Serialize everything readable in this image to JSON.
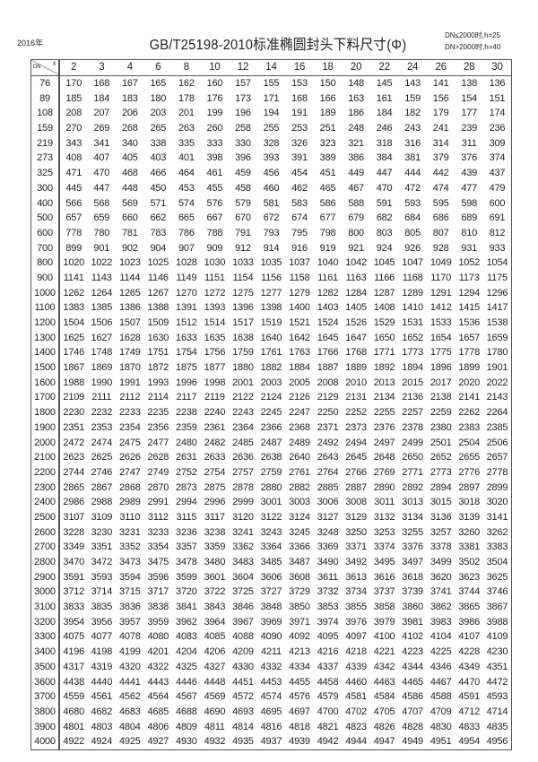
{
  "header": {
    "year": "2016年",
    "title": "GB/T25198-2010标准椭圆封头下料尺寸(Φ)",
    "note_line1": "DN≤2000时,h=25",
    "note_line2": "DN>2000时,h=40"
  },
  "table": {
    "corner_row_label": "DN",
    "corner_col_label": "δ",
    "columns": [
      "2",
      "3",
      "4",
      "6",
      "8",
      "10",
      "12",
      "14",
      "16",
      "18",
      "20",
      "22",
      "24",
      "26",
      "28",
      "30"
    ],
    "rows": [
      {
        "dn": "76",
        "v": [
          170,
          168,
          167,
          165,
          162,
          160,
          157,
          155,
          153,
          150,
          148,
          145,
          143,
          141,
          138,
          136
        ]
      },
      {
        "dn": "89",
        "v": [
          185,
          184,
          183,
          180,
          178,
          176,
          173,
          171,
          168,
          166,
          163,
          161,
          159,
          156,
          154,
          151
        ]
      },
      {
        "dn": "108",
        "v": [
          208,
          207,
          206,
          203,
          201,
          199,
          196,
          194,
          191,
          189,
          186,
          184,
          182,
          179,
          177,
          174
        ]
      },
      {
        "dn": "159",
        "v": [
          270,
          269,
          268,
          265,
          263,
          260,
          258,
          255,
          253,
          251,
          248,
          246,
          243,
          241,
          239,
          236
        ]
      },
      {
        "dn": "219",
        "v": [
          343,
          341,
          340,
          338,
          335,
          333,
          330,
          328,
          326,
          323,
          321,
          318,
          316,
          314,
          311,
          309
        ]
      },
      {
        "dn": "273",
        "v": [
          408,
          407,
          405,
          403,
          401,
          398,
          396,
          393,
          391,
          389,
          386,
          384,
          381,
          379,
          376,
          374
        ]
      },
      {
        "dn": "325",
        "v": [
          471,
          470,
          468,
          466,
          464,
          461,
          459,
          456,
          454,
          451,
          449,
          447,
          444,
          442,
          439,
          437
        ]
      },
      {
        "dn": "300",
        "v": [
          445,
          447,
          448,
          450,
          453,
          455,
          458,
          460,
          462,
          465,
          467,
          470,
          472,
          474,
          477,
          479
        ]
      },
      {
        "dn": "400",
        "v": [
          566,
          568,
          569,
          571,
          574,
          576,
          579,
          581,
          583,
          586,
          588,
          591,
          593,
          595,
          598,
          600
        ]
      },
      {
        "dn": "500",
        "v": [
          657,
          659,
          660,
          662,
          665,
          667,
          670,
          672,
          674,
          677,
          679,
          682,
          684,
          686,
          689,
          691
        ]
      },
      {
        "dn": "600",
        "v": [
          778,
          780,
          781,
          783,
          786,
          788,
          791,
          793,
          795,
          798,
          800,
          803,
          805,
          807,
          810,
          812
        ]
      },
      {
        "dn": "700",
        "v": [
          899,
          901,
          902,
          904,
          907,
          909,
          912,
          914,
          916,
          919,
          921,
          924,
          926,
          928,
          931,
          933
        ]
      },
      {
        "dn": "800",
        "v": [
          1020,
          1022,
          1023,
          1025,
          1028,
          1030,
          1033,
          1035,
          1037,
          1040,
          1042,
          1045,
          1047,
          1049,
          1052,
          1054
        ]
      },
      {
        "dn": "900",
        "v": [
          1141,
          1143,
          1144,
          1146,
          1149,
          1151,
          1154,
          1156,
          1158,
          1161,
          1163,
          1166,
          1168,
          1170,
          1173,
          1175
        ]
      },
      {
        "dn": "1000",
        "v": [
          1262,
          1264,
          1265,
          1267,
          1270,
          1272,
          1275,
          1277,
          1279,
          1282,
          1284,
          1287,
          1289,
          1291,
          1294,
          1296
        ]
      },
      {
        "dn": "1100",
        "v": [
          1383,
          1385,
          1386,
          1388,
          1391,
          1393,
          1396,
          1398,
          1400,
          1403,
          1405,
          1408,
          1410,
          1412,
          1415,
          1417
        ]
      },
      {
        "dn": "1200",
        "v": [
          1504,
          1506,
          1507,
          1509,
          1512,
          1514,
          1517,
          1519,
          1521,
          1524,
          1526,
          1529,
          1531,
          1533,
          1536,
          1538
        ]
      },
      {
        "dn": "1300",
        "v": [
          1625,
          1627,
          1628,
          1630,
          1633,
          1635,
          1638,
          1640,
          1642,
          1645,
          1647,
          1650,
          1652,
          1654,
          1657,
          1659
        ]
      },
      {
        "dn": "1400",
        "v": [
          1746,
          1748,
          1749,
          1751,
          1754,
          1756,
          1759,
          1761,
          1763,
          1766,
          1768,
          1771,
          1773,
          1775,
          1778,
          1780
        ]
      },
      {
        "dn": "1500",
        "v": [
          1867,
          1869,
          1870,
          1872,
          1875,
          1877,
          1880,
          1882,
          1884,
          1887,
          1889,
          1892,
          1894,
          1896,
          1899,
          1901
        ]
      },
      {
        "dn": "1600",
        "v": [
          1988,
          1990,
          1991,
          1993,
          1996,
          1998,
          2001,
          2003,
          2005,
          2008,
          2010,
          2013,
          2015,
          2017,
          2020,
          2022
        ]
      },
      {
        "dn": "1700",
        "v": [
          2109,
          2111,
          2112,
          2114,
          2117,
          2119,
          2122,
          2124,
          2126,
          2129,
          2131,
          2134,
          2136,
          2138,
          2141,
          2143
        ]
      },
      {
        "dn": "1800",
        "v": [
          2230,
          2232,
          2233,
          2235,
          2238,
          2240,
          2243,
          2245,
          2247,
          2250,
          2252,
          2255,
          2257,
          2259,
          2262,
          2264
        ]
      },
      {
        "dn": "1900",
        "v": [
          2351,
          2353,
          2354,
          2356,
          2359,
          2361,
          2364,
          2366,
          2368,
          2371,
          2373,
          2376,
          2378,
          2380,
          2383,
          2385
        ]
      },
      {
        "dn": "2000",
        "v": [
          2472,
          2474,
          2475,
          2477,
          2480,
          2482,
          2485,
          2487,
          2489,
          2492,
          2494,
          2497,
          2499,
          2501,
          2504,
          2506
        ]
      },
      {
        "dn": "2100",
        "v": [
          2623,
          2625,
          2626,
          2628,
          2631,
          2633,
          2636,
          2638,
          2640,
          2643,
          2645,
          2648,
          2650,
          2652,
          2655,
          2657
        ]
      },
      {
        "dn": "2200",
        "v": [
          2744,
          2746,
          2747,
          2749,
          2752,
          2754,
          2757,
          2759,
          2761,
          2764,
          2766,
          2769,
          2771,
          2773,
          2776,
          2778
        ]
      },
      {
        "dn": "2300",
        "v": [
          2865,
          2867,
          2868,
          2870,
          2873,
          2875,
          2878,
          2880,
          2882,
          2885,
          2887,
          2890,
          2892,
          2894,
          2897,
          2899
        ]
      },
      {
        "dn": "2400",
        "v": [
          2986,
          2988,
          2989,
          2991,
          2994,
          2996,
          2999,
          3001,
          3003,
          3006,
          3008,
          3011,
          3013,
          3015,
          3018,
          3020
        ]
      },
      {
        "dn": "2500",
        "v": [
          3107,
          3109,
          3110,
          3112,
          3115,
          3117,
          3120,
          3122,
          3124,
          3127,
          3129,
          3132,
          3134,
          3136,
          3139,
          3141
        ]
      },
      {
        "dn": "2600",
        "v": [
          3228,
          3230,
          3231,
          3233,
          3236,
          3238,
          3241,
          3243,
          3245,
          3248,
          3250,
          3253,
          3255,
          3257,
          3260,
          3262
        ]
      },
      {
        "dn": "2700",
        "v": [
          3349,
          3351,
          3352,
          3354,
          3357,
          3359,
          3362,
          3364,
          3366,
          3369,
          3371,
          3374,
          3376,
          3378,
          3381,
          3383
        ]
      },
      {
        "dn": "2800",
        "v": [
          3470,
          3472,
          3473,
          3475,
          3478,
          3480,
          3483,
          3485,
          3487,
          3490,
          3492,
          3495,
          3497,
          3499,
          3502,
          3504
        ]
      },
      {
        "dn": "2900",
        "v": [
          3591,
          3593,
          3594,
          3596,
          3599,
          3601,
          3604,
          3606,
          3608,
          3611,
          3613,
          3616,
          3618,
          3620,
          3623,
          3625
        ]
      },
      {
        "dn": "3000",
        "v": [
          3712,
          3714,
          3715,
          3717,
          3720,
          3722,
          3725,
          3727,
          3729,
          3732,
          3734,
          3737,
          3739,
          3741,
          3744,
          3746
        ]
      },
      {
        "dn": "3100",
        "v": [
          3833,
          3835,
          3836,
          3838,
          3841,
          3843,
          3846,
          3848,
          3850,
          3853,
          3855,
          3858,
          3860,
          3862,
          3865,
          3867
        ]
      },
      {
        "dn": "3200",
        "v": [
          3954,
          3956,
          3957,
          3959,
          3962,
          3964,
          3967,
          3969,
          3971,
          3974,
          3976,
          3979,
          3981,
          3983,
          3986,
          3988
        ]
      },
      {
        "dn": "3300",
        "v": [
          4075,
          4077,
          4078,
          4080,
          4083,
          4085,
          4088,
          4090,
          4092,
          4095,
          4097,
          4100,
          4102,
          4104,
          4107,
          4109
        ]
      },
      {
        "dn": "3400",
        "v": [
          4196,
          4198,
          4199,
          4201,
          4204,
          4206,
          4209,
          4211,
          4213,
          4216,
          4218,
          4221,
          4223,
          4225,
          4228,
          4230
        ]
      },
      {
        "dn": "3500",
        "v": [
          4317,
          4319,
          4320,
          4322,
          4325,
          4327,
          4330,
          4332,
          4334,
          4337,
          4339,
          4342,
          4344,
          4346,
          4349,
          4351
        ]
      },
      {
        "dn": "3600",
        "v": [
          4438,
          4440,
          4441,
          4443,
          4446,
          4448,
          4451,
          4453,
          4455,
          4458,
          4460,
          4463,
          4465,
          4467,
          4470,
          4472
        ]
      },
      {
        "dn": "3700",
        "v": [
          4559,
          4561,
          4562,
          4564,
          4567,
          4569,
          4572,
          4574,
          4576,
          4579,
          4581,
          4584,
          4586,
          4588,
          4591,
          4593
        ]
      },
      {
        "dn": "3800",
        "v": [
          4680,
          4682,
          4683,
          4685,
          4688,
          4690,
          4693,
          4695,
          4697,
          4700,
          4702,
          4705,
          4707,
          4709,
          4712,
          4714
        ]
      },
      {
        "dn": "3900",
        "v": [
          4801,
          4803,
          4804,
          4806,
          4809,
          4811,
          4814,
          4816,
          4818,
          4821,
          4823,
          4826,
          4828,
          4830,
          4833,
          4835
        ]
      },
      {
        "dn": "4000",
        "v": [
          4922,
          4924,
          4925,
          4927,
          4930,
          4932,
          4935,
          4937,
          4939,
          4942,
          4944,
          4947,
          4949,
          4951,
          4954,
          4956
        ]
      }
    ]
  }
}
